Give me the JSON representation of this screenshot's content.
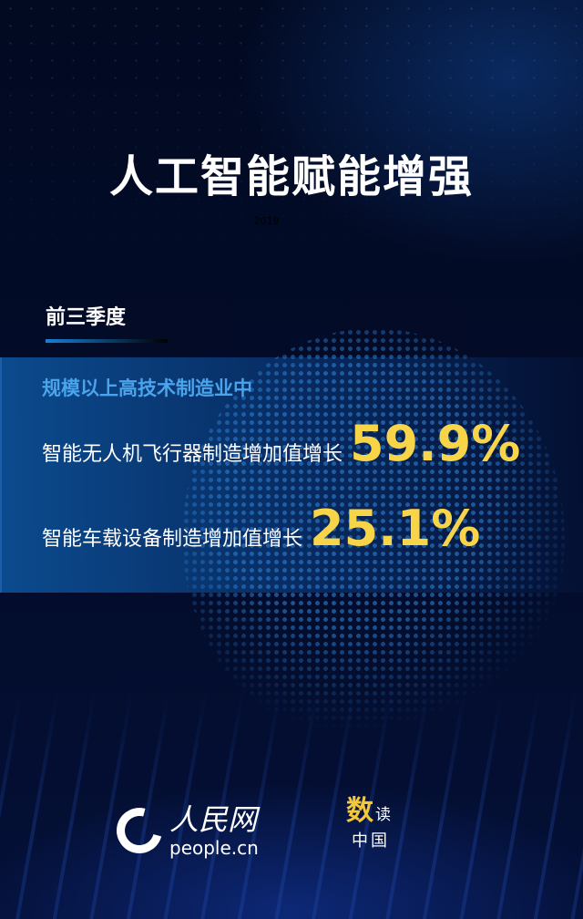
{
  "title": "人工智能赋能增强",
  "year": "2019",
  "period": "前三季度",
  "subtitle": "规模以上高技术制造业中",
  "stats": [
    {
      "label": "智能无人机飞行器制造增加值增长",
      "value": "59.9%"
    },
    {
      "label": "智能车载设备制造增加值增长",
      "value": "25.1%"
    }
  ],
  "footer": {
    "logo_text": "人民网",
    "logo_url": "people.cn",
    "brand": {
      "a": "数",
      "b": "读",
      "c": "中国"
    }
  },
  "colors": {
    "accent": "#f8d548",
    "subtitle": "#4aa4ec",
    "background": "#030a22"
  }
}
